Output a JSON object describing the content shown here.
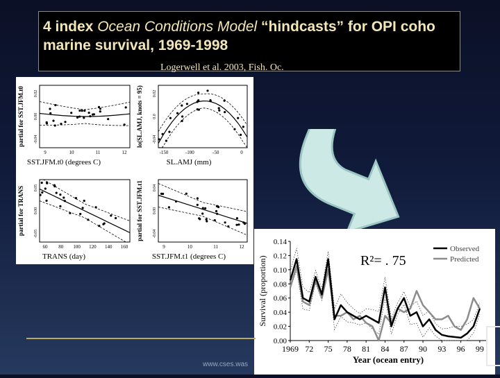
{
  "slide": {
    "title_lead": "4 index ",
    "title_italic": "Ocean Conditions Model",
    "title_tail": "  “hindcasts” for OPI coho marine survival, 1969-1998",
    "citation": "Logerwell et al. 2003, Fish. Oc.",
    "footer_url": "www.cses.was",
    "colors": {
      "title_text": "#f2e6b8",
      "arrow_fill": "#cde9e6",
      "arrow_edge": "#9bc6c2",
      "footer_line": "#b9aa62"
    },
    "arrow_icon": "curved-arrow-down-icon"
  },
  "partial_plots": [
    {
      "ylabel": "partial for SST.JFM.t0",
      "xlabel": "SST.JFM.t0 (degrees C)",
      "xticks": [
        "9",
        "10",
        "11",
        "12"
      ],
      "yticks": [
        "-0.04",
        "0.00",
        "0.02"
      ]
    },
    {
      "ylabel": "lo(SL.AMJ, knots = 95)",
      "xlabel": "SL.AMJ (mm)",
      "xticks": [
        "-150",
        "-100",
        "-50",
        "0"
      ],
      "yticks": [
        "-0.04",
        "0.0",
        "0.02"
      ]
    },
    {
      "ylabel": "partial for TRANS",
      "xlabel": "TRANS (day)",
      "xticks": [
        "60",
        "80",
        "100",
        "120",
        "140",
        "160"
      ],
      "yticks": [
        "-0.05",
        "0.00",
        "0.05"
      ]
    },
    {
      "ylabel": "partial for SST.JFM.t1",
      "xlabel": "SST.JFM.t1  (degrees C)",
      "xticks": [
        "9",
        "10",
        "11",
        "12"
      ],
      "yticks": [
        "-0.04",
        "0.00",
        "0.04"
      ]
    }
  ],
  "chart_data": {
    "type": "line",
    "xlabel": "Year (ocean entry)",
    "ylabel": "Survival (proportion)",
    "annotation": "R²= . 75",
    "xlim": [
      1969,
      2000
    ],
    "ylim": [
      0,
      0.14
    ],
    "yticks": [
      "0.00",
      "0.02",
      "0.04",
      "0.06",
      "0.08",
      "0.10",
      "0.12",
      "0.14"
    ],
    "xtick_values": [
      1969,
      1972,
      1975,
      1978,
      1981,
      1984,
      1987,
      1990,
      1993,
      1996,
      1999
    ],
    "xticks": [
      "1969",
      "72",
      "75",
      "78",
      "81",
      "84",
      "87",
      "90",
      "93",
      "96",
      "99"
    ],
    "legend": "top-right",
    "x": [
      1969,
      1970,
      1971,
      1972,
      1973,
      1974,
      1975,
      1976,
      1977,
      1978,
      1979,
      1980,
      1981,
      1982,
      1983,
      1984,
      1985,
      1986,
      1987,
      1988,
      1989,
      1990,
      1991,
      1992,
      1993,
      1994,
      1995,
      1996,
      1997,
      1998,
      1999
    ],
    "series": [
      {
        "name": "Observed",
        "color": "#000000",
        "width": 2.5,
        "values": [
          0.085,
          0.115,
          0.06,
          0.055,
          0.09,
          0.065,
          0.115,
          0.03,
          0.05,
          0.04,
          0.035,
          0.03,
          0.035,
          0.03,
          0.025,
          0.075,
          0.02,
          0.045,
          0.06,
          0.035,
          0.04,
          0.02,
          0.03,
          0.015,
          0.008,
          0.006,
          0.005,
          0.004,
          0.01,
          0.02,
          0.045
        ]
      },
      {
        "name": "Predicted",
        "color": "#8c8c8c",
        "width": 2.5,
        "values": [
          0.075,
          0.105,
          0.055,
          0.05,
          0.085,
          0.06,
          0.1,
          0.035,
          0.035,
          0.04,
          0.03,
          0.035,
          0.025,
          0.02,
          0.0,
          0.035,
          0.025,
          0.045,
          0.04,
          0.045,
          0.07,
          0.05,
          0.04,
          0.03,
          0.03,
          0.035,
          0.02,
          0.015,
          0.03,
          0.06,
          0.045
        ]
      }
    ]
  }
}
